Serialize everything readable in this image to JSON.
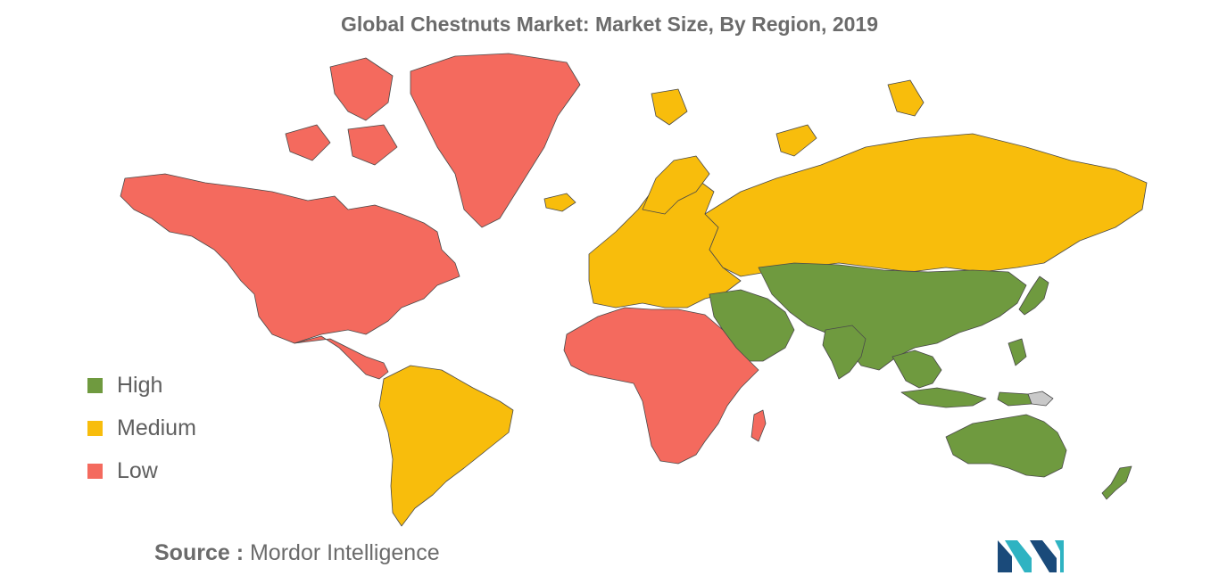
{
  "title": "Global Chestnuts Market: Market Size, By Region, 2019",
  "legend": [
    {
      "label": "High",
      "color": "#6f9a3f"
    },
    {
      "label": "Medium",
      "color": "#f8bd0c"
    },
    {
      "label": "Low",
      "color": "#f46a5e"
    }
  ],
  "colors": {
    "high": "#6f9a3f",
    "medium": "#f8bd0c",
    "low": "#f46a5e",
    "no_data": "#c9c9c9",
    "logo_dark": "#1a4a7a",
    "logo_light": "#2fb3c2"
  },
  "regions": [
    {
      "name": "North America",
      "level": "Low"
    },
    {
      "name": "Greenland",
      "level": "Low"
    },
    {
      "name": "Central America",
      "level": "Low"
    },
    {
      "name": "South America",
      "level": "Medium"
    },
    {
      "name": "Europe",
      "level": "Medium"
    },
    {
      "name": "Russia",
      "level": "Medium"
    },
    {
      "name": "Africa",
      "level": "Low"
    },
    {
      "name": "Middle East",
      "level": "High"
    },
    {
      "name": "Asia",
      "level": "High"
    },
    {
      "name": "Southeast Asia",
      "level": "High"
    },
    {
      "name": "Australia",
      "level": "High"
    },
    {
      "name": "New Zealand",
      "level": "High"
    }
  ],
  "source": {
    "prefix": "Source :",
    "text": "Mordor Intelligence"
  }
}
